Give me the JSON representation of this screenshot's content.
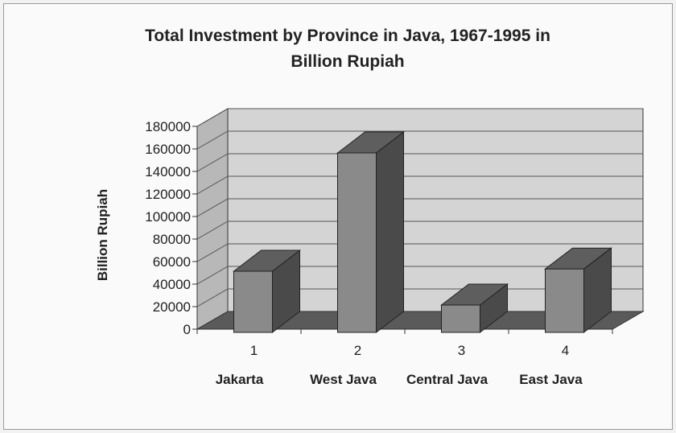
{
  "chart_data": {
    "type": "bar",
    "title": [
      "Total Investment by Province in Java, 1967-1995 in",
      "Billion Rupiah"
    ],
    "ylabel": "Billion Rupiah",
    "categories": [
      "1",
      "2",
      "3",
      "4"
    ],
    "category_names": [
      "Jakarta",
      "West Java",
      "Central Java",
      "East Java"
    ],
    "values": [
      60000,
      165000,
      30000,
      62000
    ],
    "ylim": [
      0,
      180000
    ],
    "yticks": [
      "0",
      "20000",
      "40000",
      "60000",
      "80000",
      "100000",
      "120000",
      "140000",
      "160000",
      "180000"
    ],
    "grid": true,
    "legend": "none",
    "colors": {
      "bar_front": "#8a8a8a",
      "bar_side": "#4a4a4a",
      "bar_top": "#5e5e5e",
      "wall_back": "#d4d4d4",
      "wall_left": "#b8b8b8",
      "floor": "#5a5a5a",
      "grid": "#555555"
    }
  }
}
